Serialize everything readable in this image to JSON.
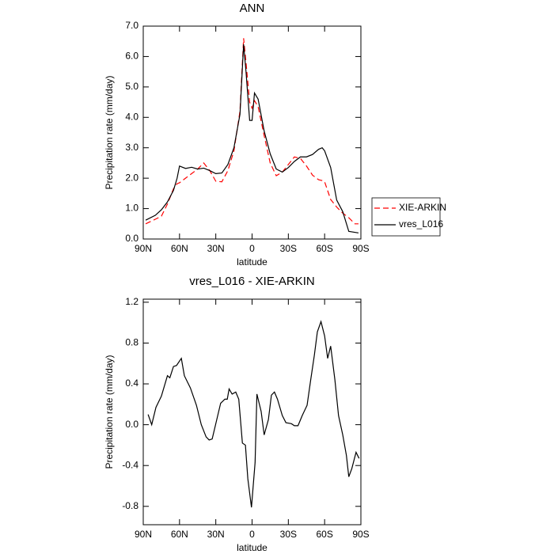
{
  "chart_data": [
    {
      "type": "line",
      "title": "ANN",
      "xlabel": "latitude",
      "ylabel": "Precipitation rate (mm/day)",
      "x": [
        88,
        80,
        75,
        70,
        65,
        62,
        60,
        55,
        50,
        45,
        40,
        35,
        30,
        25,
        20,
        15,
        10,
        7,
        5,
        2,
        0,
        -2,
        -5,
        -10,
        -15,
        -20,
        -25,
        -30,
        -35,
        -40,
        -45,
        -50,
        -55,
        -58,
        -60,
        -65,
        -70,
        -75,
        -80,
        -85,
        -88
      ],
      "series": [
        {
          "name": "XIE-ARKIN",
          "color": "#ff0000",
          "dashed": true,
          "values": [
            0.5,
            0.65,
            0.75,
            1.15,
            1.65,
            1.82,
            1.85,
            2.0,
            2.15,
            2.3,
            2.5,
            2.25,
            1.9,
            1.88,
            2.25,
            2.9,
            4.2,
            6.6,
            5.8,
            4.5,
            4.3,
            4.55,
            4.35,
            3.4,
            2.5,
            2.08,
            2.2,
            2.45,
            2.7,
            2.65,
            2.4,
            2.1,
            1.95,
            1.92,
            1.88,
            1.3,
            1.05,
            0.85,
            0.7,
            0.5,
            0.5
          ]
        },
        {
          "name": "vres_L016",
          "color": "#000000",
          "dashed": false,
          "values": [
            0.62,
            0.78,
            0.96,
            1.22,
            1.6,
            2.0,
            2.4,
            2.32,
            2.36,
            2.3,
            2.33,
            2.25,
            2.15,
            2.17,
            2.45,
            3.0,
            4.1,
            6.4,
            5.5,
            3.9,
            3.9,
            4.8,
            4.6,
            3.55,
            2.8,
            2.3,
            2.2,
            2.35,
            2.55,
            2.7,
            2.7,
            2.78,
            2.95,
            3.0,
            2.9,
            2.35,
            1.28,
            0.9,
            0.25,
            0.22,
            0.2
          ]
        }
      ],
      "xlim": [
        90,
        -90
      ],
      "xticks": [
        {
          "value": 90,
          "label": "90N"
        },
        {
          "value": 60,
          "label": "60N"
        },
        {
          "value": 30,
          "label": "30N"
        },
        0,
        {
          "value": -30,
          "label": "30S"
        },
        {
          "value": -60,
          "label": "60S"
        },
        {
          "value": -90,
          "label": "90S"
        }
      ],
      "ylim": [
        0,
        7
      ],
      "yticks": [
        {
          "value": 0,
          "label": "0.0"
        },
        {
          "value": 1,
          "label": "1.0"
        },
        {
          "value": 2,
          "label": "2.0"
        },
        {
          "value": 3,
          "label": "3.0"
        },
        {
          "value": 4,
          "label": "4.0"
        },
        {
          "value": 5,
          "label": "5.0"
        },
        {
          "value": 6,
          "label": "6.0"
        },
        {
          "value": 7,
          "label": "7.0"
        }
      ],
      "legend": "right"
    },
    {
      "type": "line",
      "title": "vres_L016 - XIE-ARKIN",
      "xlabel": "latitude",
      "ylabel": "Precipitation rate (mm/day)",
      "x": [
        86,
        83,
        79.5,
        75,
        70,
        68,
        65,
        62.5,
        58.5,
        56,
        51,
        46,
        42,
        38,
        35.5,
        33,
        30,
        26,
        22.5,
        20.5,
        19,
        16.5,
        13.5,
        11,
        8,
        5.5,
        3.5,
        0.5,
        -2.5,
        -4,
        -7.5,
        -10,
        -13.5,
        -16,
        -18.5,
        -21,
        -25,
        -28,
        -32.5,
        -35,
        -38,
        -41.5,
        -45.5,
        -48.5,
        -51.5,
        -54,
        -57,
        -60,
        -62.5,
        -65,
        -68.5,
        -71.5,
        -75,
        -78,
        -80,
        -82.5,
        -86,
        -88.5
      ],
      "values": [
        0.1,
        0.0,
        0.17,
        0.28,
        0.48,
        0.46,
        0.57,
        0.58,
        0.65,
        0.48,
        0.36,
        0.19,
        0.0,
        -0.12,
        -0.15,
        -0.14,
        0.01,
        0.21,
        0.25,
        0.25,
        0.35,
        0.3,
        0.32,
        0.25,
        -0.18,
        -0.2,
        -0.53,
        -0.81,
        -0.37,
        0.3,
        0.13,
        -0.1,
        0.05,
        0.29,
        0.32,
        0.25,
        0.09,
        0.02,
        0.01,
        -0.01,
        -0.01,
        0.09,
        0.19,
        0.44,
        0.68,
        0.91,
        1.01,
        0.87,
        0.65,
        0.77,
        0.44,
        0.09,
        -0.1,
        -0.3,
        -0.51,
        -0.43,
        -0.27,
        -0.33
      ],
      "color": "#000000",
      "xlim": [
        90,
        -90
      ],
      "xticks": [
        {
          "value": 90,
          "label": "90N"
        },
        {
          "value": 60,
          "label": "60N"
        },
        {
          "value": 30,
          "label": "30N"
        },
        0,
        {
          "value": -30,
          "label": "30S"
        },
        {
          "value": -60,
          "label": "60S"
        },
        {
          "value": -90,
          "label": "90S"
        }
      ],
      "ylim": [
        -0.98,
        1.23
      ],
      "yticks": [
        -0.8,
        -0.4,
        {
          "value": 0,
          "label": "0.0"
        },
        0.4,
        0.8,
        1.2
      ]
    }
  ]
}
